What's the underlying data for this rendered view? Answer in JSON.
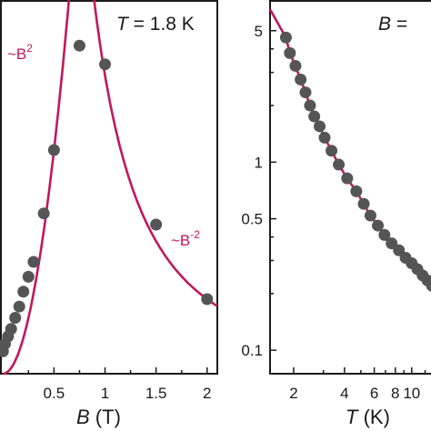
{
  "colors": {
    "fit": "#c2185b",
    "points": "#555555",
    "axis": "#1a1a1a"
  },
  "chart_data": [
    {
      "type": "scatter",
      "title": "T = 1.8 K",
      "title_var": "T",
      "title_rest": " = 1.8 K",
      "xlabel_var": "B",
      "xlabel_unit": " (T)",
      "xlim": [
        -0.02,
        2.1
      ],
      "ylim": [
        0,
        1
      ],
      "x_ticks": [
        0.5,
        1,
        1.5,
        2
      ],
      "x_tick_labels": [
        "0.5",
        "1",
        "1.5",
        "2"
      ],
      "annotations": [
        {
          "text": "~B",
          "sup": "2"
        },
        {
          "text": "~B",
          "sup": "-2"
        }
      ],
      "series": [
        {
          "x": [
            0.0,
            0.02,
            0.05,
            0.08,
            0.12,
            0.16,
            0.2,
            0.25,
            0.3,
            0.4,
            0.5,
            0.75,
            1.0,
            1.5,
            2.0
          ],
          "y": [
            0.06,
            0.08,
            0.1,
            0.12,
            0.15,
            0.18,
            0.22,
            0.26,
            0.3,
            0.43,
            0.6,
            0.88,
            0.83,
            0.4,
            0.2
          ]
        }
      ]
    },
    {
      "type": "scatter",
      "title": "B = ",
      "title_var": "B",
      "title_rest": " = ",
      "xlabel_var": "T",
      "xlabel_unit": " (K)",
      "xscale": "log",
      "yscale": "log",
      "xlim": [
        1.45,
        13.5
      ],
      "ylim": [
        0.075,
        7.2
      ],
      "x_ticks": [
        2,
        4,
        6,
        8,
        10
      ],
      "x_tick_labels": [
        "2",
        "4",
        "6",
        "8",
        "10"
      ],
      "y_ticks": [
        0.1,
        0.5,
        1,
        5
      ],
      "y_tick_labels": [
        "0.1",
        "0.5",
        "1",
        "5"
      ],
      "series": [
        {
          "x": [
            1.8,
            1.9,
            2.05,
            2.2,
            2.35,
            2.5,
            2.65,
            2.85,
            3.05,
            3.35,
            3.7,
            4.15,
            4.7,
            5.2,
            5.7,
            6.3,
            6.9,
            7.6,
            8.4,
            9.2,
            10.0,
            10.8,
            11.6,
            12.4,
            13.2
          ],
          "y": [
            4.6,
            3.8,
            3.25,
            2.75,
            2.35,
            2.0,
            1.75,
            1.55,
            1.35,
            1.15,
            0.97,
            0.82,
            0.7,
            0.6,
            0.52,
            0.46,
            0.41,
            0.37,
            0.34,
            0.31,
            0.29,
            0.27,
            0.25,
            0.235,
            0.22
          ]
        }
      ]
    }
  ]
}
